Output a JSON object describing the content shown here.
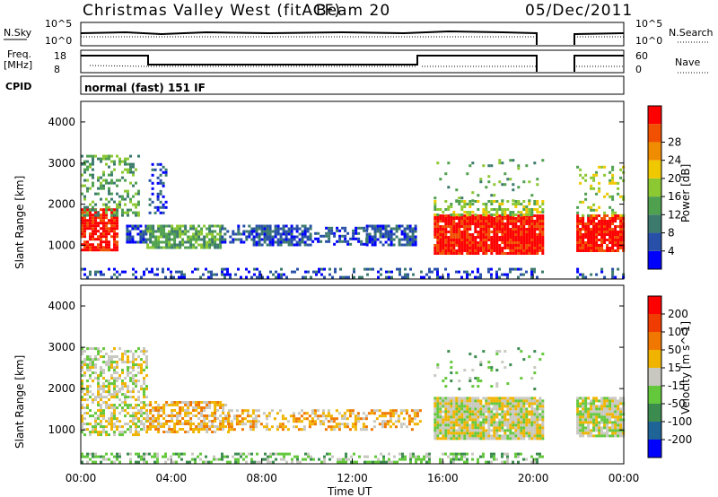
{
  "header": {
    "station": "Christmas Valley West (fitACF)",
    "beam": "Beam 20",
    "date": "05/Dec/2011"
  },
  "panels": {
    "nsky_label": "N.Sky",
    "nsky_ticks": [
      "10^5",
      "10^0"
    ],
    "nsearch_label": "N.Search",
    "nsearch_ticks": [
      "10^5",
      "10^0"
    ],
    "freq_label_1": "Freq.",
    "freq_label_2": "[MHz]",
    "freq_ticks": [
      "18",
      "8"
    ],
    "nave_label": "Nave",
    "nave_ticks": [
      "60",
      "0"
    ],
    "cpid_label": "CPID",
    "cpid_value": "normal (fast) 151 IF"
  },
  "colors": {
    "power": [
      "#0000ff",
      "#2850a8",
      "#3c7a6e",
      "#4fa04f",
      "#8cc832",
      "#f0c800",
      "#f08c00",
      "#f05000",
      "#ff0000"
    ],
    "velocity": [
      "#0000ff",
      "#1e6496",
      "#3c8c50",
      "#64c83c",
      "#c8c8c0",
      "#f0b400",
      "#f07800",
      "#f03c00",
      "#ff0000"
    ]
  },
  "chart_data": [
    {
      "type": "heatmap",
      "title": "Power",
      "colorbar_label": "Power [dB]",
      "colorbar_ticks": [
        "4",
        "8",
        "12",
        "16",
        "20",
        "24",
        "28"
      ],
      "ylabel": "Slant Range [km]",
      "yticks": [
        "1000",
        "2000",
        "3000",
        "4000"
      ],
      "ylim": [
        180,
        4500
      ],
      "xlim": [
        0,
        24
      ],
      "regions": [
        {
          "t0": 0.0,
          "t1": 1.6,
          "r0": 900,
          "r1": 1900,
          "level": 8,
          "density": 0.75
        },
        {
          "t0": 0.0,
          "t1": 2.6,
          "r0": 1700,
          "r1": 3200,
          "level": 3,
          "density": 0.35
        },
        {
          "t0": 2.0,
          "t1": 2.9,
          "r0": 1100,
          "r1": 1500,
          "level": 1,
          "density": 0.7
        },
        {
          "t0": 2.9,
          "t1": 6.2,
          "r0": 950,
          "r1": 1500,
          "level": 3,
          "density": 0.75
        },
        {
          "t0": 3.0,
          "t1": 3.8,
          "r0": 1800,
          "r1": 3000,
          "level": 1,
          "density": 0.3
        },
        {
          "t0": 6.2,
          "t1": 7.6,
          "r0": 1050,
          "r1": 1500,
          "level": 1,
          "density": 0.5
        },
        {
          "t0": 7.6,
          "t1": 10.2,
          "r0": 1000,
          "r1": 1500,
          "level": 1,
          "density": 0.75
        },
        {
          "t0": 10.2,
          "t1": 12.6,
          "r0": 1050,
          "r1": 1450,
          "level": 1,
          "density": 0.45
        },
        {
          "t0": 12.6,
          "t1": 14.8,
          "r0": 1000,
          "r1": 1500,
          "level": 1,
          "density": 0.7
        },
        {
          "t0": 15.6,
          "t1": 20.4,
          "r0": 800,
          "r1": 1750,
          "level": 8,
          "density": 0.92
        },
        {
          "t0": 15.6,
          "t1": 20.4,
          "r0": 1750,
          "r1": 2100,
          "level": 4,
          "density": 0.5
        },
        {
          "t0": 15.6,
          "t1": 20.4,
          "r0": 2100,
          "r1": 3100,
          "level": 3,
          "density": 0.08
        },
        {
          "t0": 21.9,
          "t1": 24.0,
          "r0": 850,
          "r1": 1750,
          "level": 8,
          "density": 0.9
        },
        {
          "t0": 21.9,
          "t1": 24.0,
          "r0": 1750,
          "r1": 3000,
          "level": 4,
          "density": 0.18
        },
        {
          "t0": 0.0,
          "t1": 20.4,
          "r0": 200,
          "r1": 450,
          "level": 1,
          "density": 0.35
        },
        {
          "t0": 21.9,
          "t1": 24.0,
          "r0": 200,
          "r1": 450,
          "level": 1,
          "density": 0.3
        }
      ]
    },
    {
      "type": "heatmap",
      "title": "Velocity",
      "colorbar_label": "Velocity [m s^-1]",
      "colorbar_ticks": [
        "200",
        "100",
        "50",
        "15",
        "-15",
        "-50",
        "-100",
        "-200"
      ],
      "ylabel": "Slant Range [km]",
      "yticks": [
        "1000",
        "2000",
        "3000",
        "4000"
      ],
      "xticks": [
        "00:00",
        "04:00",
        "08:00",
        "12:00",
        "16:00",
        "20:00",
        "00:00"
      ],
      "xlabel": "Time UT",
      "ylim": [
        180,
        4500
      ],
      "xlim": [
        0,
        24
      ],
      "regions": [
        {
          "t0": 0.0,
          "t1": 2.9,
          "r0": 900,
          "r1": 3000,
          "level": 4,
          "density": 0.55
        },
        {
          "t0": 2.9,
          "t1": 6.5,
          "r0": 950,
          "r1": 1700,
          "level": 5,
          "density": 0.6
        },
        {
          "t0": 6.5,
          "t1": 15.0,
          "r0": 1000,
          "r1": 1500,
          "level": 5,
          "density": 0.45
        },
        {
          "t0": 15.6,
          "t1": 20.4,
          "r0": 800,
          "r1": 1800,
          "level": 4,
          "density": 0.95
        },
        {
          "t0": 21.9,
          "t1": 24.0,
          "r0": 850,
          "r1": 1800,
          "level": 4,
          "density": 0.92
        },
        {
          "t0": 0.0,
          "t1": 20.4,
          "r0": 200,
          "r1": 450,
          "level": 3,
          "density": 0.45
        },
        {
          "t0": 15.6,
          "t1": 20.4,
          "r0": 2000,
          "r1": 3000,
          "level": 3,
          "density": 0.1
        }
      ]
    }
  ]
}
